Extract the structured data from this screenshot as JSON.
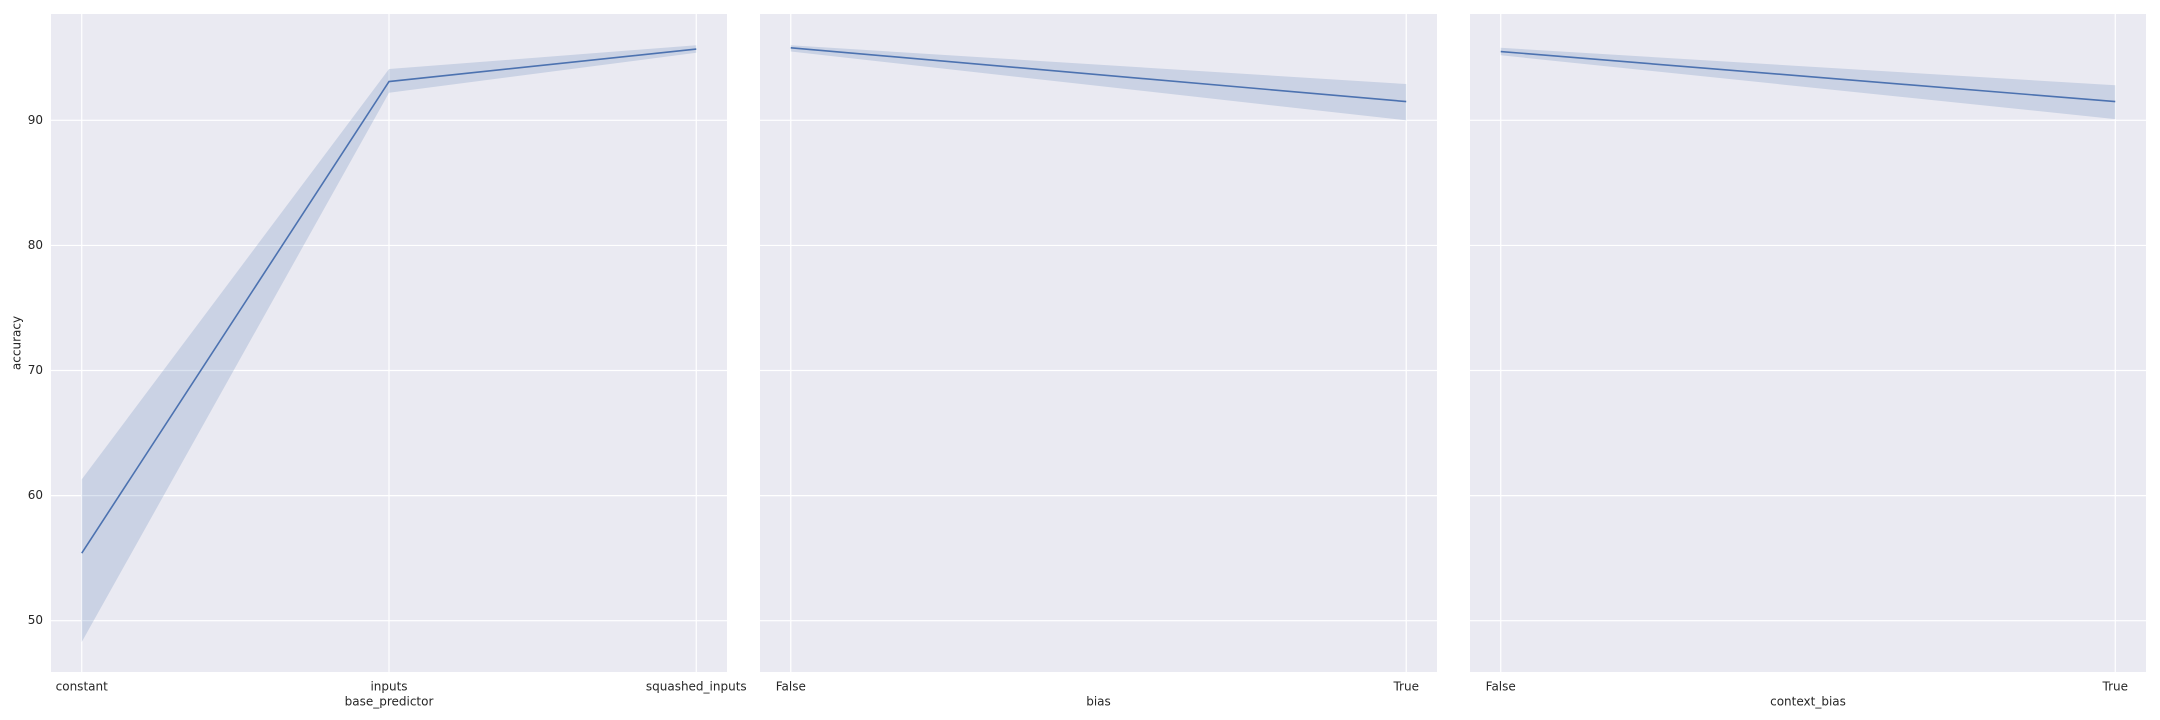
{
  "chart_data": [
    {
      "type": "line",
      "xlabel": "base_predictor",
      "ylabel": "accuracy",
      "categories": [
        "constant",
        "inputs",
        "squashed_inputs"
      ],
      "values": [
        55.4,
        93.1,
        95.7
      ],
      "ci_lower": [
        48.3,
        92.2,
        95.4
      ],
      "ci_upper": [
        61.3,
        94.1,
        96.0
      ],
      "color": "#4c72b0",
      "ylim": [
        45.9,
        98.5
      ],
      "yticks": [
        50,
        60,
        70,
        80,
        90
      ],
      "grid": true,
      "show_yticklabels": true
    },
    {
      "type": "line",
      "xlabel": "bias",
      "categories": [
        "False",
        "True"
      ],
      "values": [
        95.8,
        91.5
      ],
      "ci_lower": [
        95.5,
        90.0
      ],
      "ci_upper": [
        96.0,
        92.9
      ],
      "color": "#4c72b0",
      "ylim": [
        45.9,
        98.5
      ],
      "yticks": [
        50,
        60,
        70,
        80,
        90
      ],
      "grid": true,
      "show_yticklabels": false
    },
    {
      "type": "line",
      "xlabel": "context_bias",
      "categories": [
        "False",
        "True"
      ],
      "values": [
        95.5,
        91.5
      ],
      "ci_lower": [
        95.2,
        90.1
      ],
      "ci_upper": [
        95.8,
        92.8
      ],
      "color": "#4c72b0",
      "ylim": [
        45.9,
        98.5
      ],
      "yticks": [
        50,
        60,
        70,
        80,
        90
      ],
      "grid": true,
      "show_yticklabels": false
    }
  ]
}
